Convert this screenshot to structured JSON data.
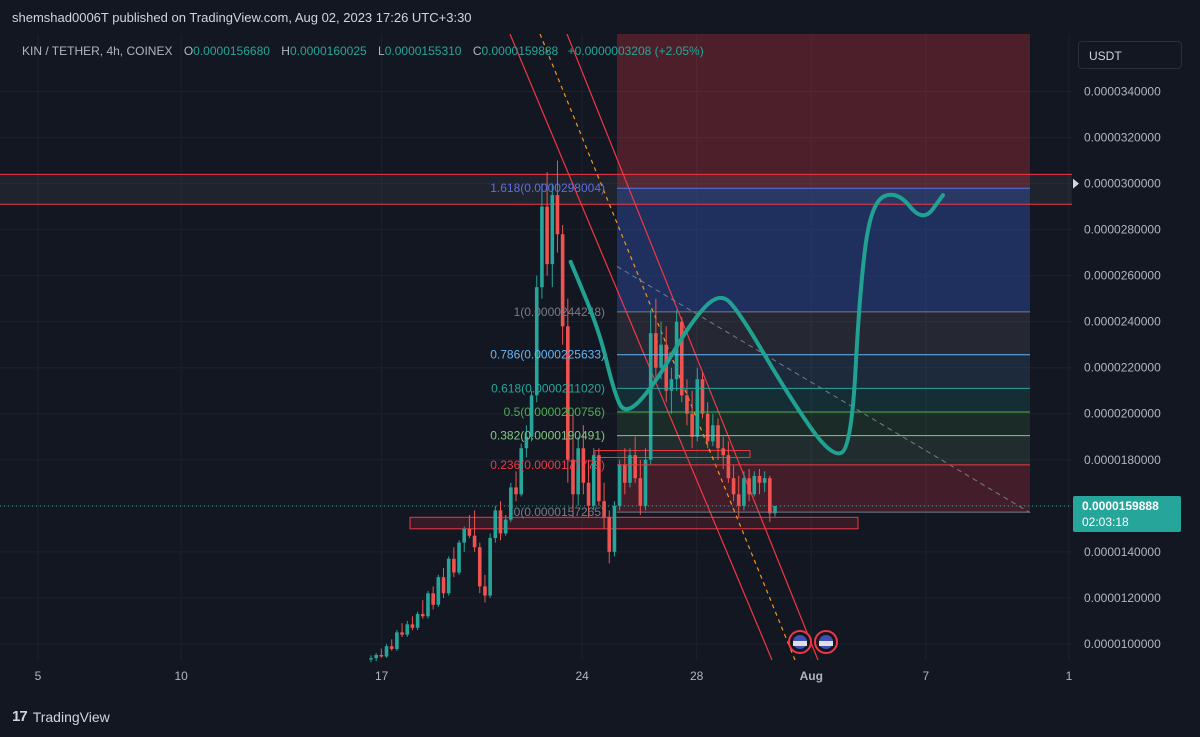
{
  "header": {
    "published": "shemshad0006T published on TradingView.com, Aug 02, 2023 17:26 UTC+3:30"
  },
  "legend": {
    "symbol": "KIN / TETHER, 4h, COINEX",
    "o_label": "O",
    "o_value": "0.0000156680",
    "h_label": "H",
    "h_value": "0.0000160025",
    "l_label": "L",
    "l_value": "0.0000155310",
    "c_label": "C",
    "c_value": "0.0000159888",
    "change": "+0.0000003208 (+2.05%)"
  },
  "currency_button": "USDT",
  "footer": {
    "brand": "TradingView"
  },
  "colors": {
    "bg": "#131722",
    "up": "#26a69a",
    "down": "#ef5350",
    "path": "#21a192",
    "grid": "#1e222d"
  },
  "chart_data": {
    "type": "candlestick",
    "interval": "4h",
    "ylim": [
      9.3e-06,
      3.65e-05
    ],
    "y_ticks": [
      {
        "value": 1e-05,
        "label": "0.0000100000"
      },
      {
        "value": 1.2e-05,
        "label": "0.0000120000"
      },
      {
        "value": 1.4e-05,
        "label": "0.0000140000"
      },
      {
        "value": 1.6e-05,
        "label": ""
      },
      {
        "value": 1.8e-05,
        "label": "0.0000180000"
      },
      {
        "value": 2e-05,
        "label": "0.0000200000"
      },
      {
        "value": 2.2e-05,
        "label": "0.0000220000"
      },
      {
        "value": 2.4e-05,
        "label": "0.0000240000"
      },
      {
        "value": 2.6e-05,
        "label": "0.0000260000"
      },
      {
        "value": 2.8e-05,
        "label": "0.0000280000"
      },
      {
        "value": 3e-05,
        "label": "0.0000300000"
      },
      {
        "value": 3.2e-05,
        "label": "0.0000320000"
      },
      {
        "value": 3.4e-05,
        "label": "0.0000340000"
      }
    ],
    "x_ticks": [
      {
        "day": 5,
        "label": "5"
      },
      {
        "day": 10,
        "label": "10"
      },
      {
        "day": 17,
        "label": "17"
      },
      {
        "day": 24,
        "label": "24"
      },
      {
        "day": 28,
        "label": "28"
      },
      {
        "day": 32,
        "label": "Aug"
      },
      {
        "day": 36,
        "label": "7"
      },
      {
        "day": 41,
        "label": "1"
      }
    ],
    "x_range_days": [
      4,
      41
    ],
    "last_price": {
      "value": 1.59888e-05,
      "label": "0.0000159888",
      "countdown": "02:03:18"
    },
    "fib_levels": [
      {
        "ratio": 1.618,
        "label": "1.618(0.0000298004)",
        "value": 2.98004e-05,
        "color": "#5b6ee1"
      },
      {
        "ratio": 1,
        "label": "1(0.0000244248)",
        "value": 2.44248e-05,
        "color": "#787b86"
      },
      {
        "ratio": 0.786,
        "label": "0.786(0.0000225633)",
        "value": 2.25633e-05,
        "color": "#64b5f6"
      },
      {
        "ratio": 0.618,
        "label": "0.618(0.0000211020)",
        "value": 2.1102e-05,
        "color": "#26a69a"
      },
      {
        "ratio": 0.5,
        "label": "0.5(0.0000200756)",
        "value": 2.00756e-05,
        "color": "#4caf50"
      },
      {
        "ratio": 0.382,
        "label": "0.382(0.0000190491)",
        "value": 1.90491e-05,
        "color": "#81c784"
      },
      {
        "ratio": 0.236,
        "label": "0.236(0.0000177779)",
        "value": 1.77779e-05,
        "color": "#f23645"
      },
      {
        "ratio": 0,
        "label": "0(0.0000157265)",
        "value": 1.57265e-05,
        "color": "#787b86"
      }
    ],
    "horizontal_levels": [
      3.04e-05,
      2.91e-05
    ],
    "candles": [
      [
        9.32e-06,
        9.5e-06,
        9.2e-06,
        9.38e-06
      ],
      [
        9.38e-06,
        9.6e-06,
        9.25e-06,
        9.52e-06
      ],
      [
        9.52e-06,
        9.8e-06,
        9.4e-06,
        9.45e-06
      ],
      [
        9.45e-06,
        1e-05,
        9.4e-06,
        9.9e-06
      ],
      [
        9.9e-06,
        1.02e-05,
        9.7e-06,
        9.78e-06
      ],
      [
        9.78e-06,
        1.06e-05,
        9.7e-06,
        1.05e-05
      ],
      [
        1.05e-05,
        1.09e-05,
        1.03e-05,
        1.04e-05
      ],
      [
        1.04e-05,
        1.1e-05,
        1.03e-05,
        1.085e-05
      ],
      [
        1.085e-05,
        1.12e-05,
        1.06e-05,
        1.07e-05
      ],
      [
        1.07e-05,
        1.14e-05,
        1.06e-05,
        1.13e-05
      ],
      [
        1.13e-05,
        1.19e-05,
        1.11e-05,
        1.12e-05
      ],
      [
        1.12e-05,
        1.23e-05,
        1.11e-05,
        1.22e-05
      ],
      [
        1.22e-05,
        1.25e-05,
        1.15e-05,
        1.17e-05
      ],
      [
        1.17e-05,
        1.3e-05,
        1.16e-05,
        1.29e-05
      ],
      [
        1.29e-05,
        1.33e-05,
        1.2e-05,
        1.22e-05
      ],
      [
        1.22e-05,
        1.38e-05,
        1.21e-05,
        1.37e-05
      ],
      [
        1.37e-05,
        1.42e-05,
        1.29e-05,
        1.31e-05
      ],
      [
        1.31e-05,
        1.45e-05,
        1.3e-05,
        1.44e-05
      ],
      [
        1.44e-05,
        1.51e-05,
        1.4e-05,
        1.5e-05
      ],
      [
        1.5e-05,
        1.56e-05,
        1.46e-05,
        1.47e-05
      ],
      [
        1.47e-05,
        1.58e-05,
        1.4e-05,
        1.42e-05
      ],
      [
        1.42e-05,
        1.44e-05,
        1.22e-05,
        1.25e-05
      ],
      [
        1.25e-05,
        1.3e-05,
        1.18e-05,
        1.21e-05
      ],
      [
        1.21e-05,
        1.48e-05,
        1.2e-05,
        1.46e-05
      ],
      [
        1.46e-05,
        1.6e-05,
        1.44e-05,
        1.58e-05
      ],
      [
        1.58e-05,
        1.62e-05,
        1.45e-05,
        1.48e-05
      ],
      [
        1.48e-05,
        1.56e-05,
        1.47e-05,
        1.54e-05
      ],
      [
        1.54e-05,
        1.7e-05,
        1.53e-05,
        1.68e-05
      ],
      [
        1.68e-05,
        1.75e-05,
        1.62e-05,
        1.65e-05
      ],
      [
        1.65e-05,
        1.87e-05,
        1.64e-05,
        1.85e-05
      ],
      [
        1.85e-05,
        1.95e-05,
        1.81e-05,
        1.9e-05
      ],
      [
        1.9e-05,
        2.1e-05,
        1.88e-05,
        2.08e-05
      ],
      [
        2.08e-05,
        2.6e-05,
        2.05e-05,
        2.55e-05
      ],
      [
        2.55e-05,
        3e-05,
        2.5e-05,
        2.9e-05
      ],
      [
        2.9e-05,
        3.05e-05,
        2.6e-05,
        2.65e-05
      ],
      [
        2.65e-05,
        3e-05,
        2.55e-05,
        2.95e-05
      ],
      [
        2.95e-05,
        3.1e-05,
        2.7e-05,
        2.78e-05
      ],
      [
        2.78e-05,
        2.82e-05,
        2.3e-05,
        2.38e-05
      ],
      [
        2.38e-05,
        2.5e-05,
        1.7e-05,
        1.8e-05
      ],
      [
        1.8e-05,
        2e-05,
        1.55e-05,
        1.65e-05
      ],
      [
        1.65e-05,
        1.9e-05,
        1.6e-05,
        1.85e-05
      ],
      [
        1.85e-05,
        1.95e-05,
        1.65e-05,
        1.7e-05
      ],
      [
        1.7e-05,
        1.8e-05,
        1.55e-05,
        1.6e-05
      ],
      [
        1.6e-05,
        1.85e-05,
        1.58e-05,
        1.82e-05
      ],
      [
        1.82e-05,
        1.85e-05,
        1.6e-05,
        1.62e-05
      ],
      [
        1.62e-05,
        1.7e-05,
        1.5e-05,
        1.55e-05
      ],
      [
        1.55e-05,
        1.58e-05,
        1.35e-05,
        1.4e-05
      ],
      [
        1.4e-05,
        1.62e-05,
        1.38e-05,
        1.6e-05
      ],
      [
        1.6e-05,
        1.8e-05,
        1.58e-05,
        1.78e-05
      ],
      [
        1.78e-05,
        1.85e-05,
        1.65e-05,
        1.7e-05
      ],
      [
        1.7e-05,
        1.85e-05,
        1.68e-05,
        1.82e-05
      ],
      [
        1.82e-05,
        1.9e-05,
        1.7e-05,
        1.72e-05
      ],
      [
        1.72e-05,
        1.8e-05,
        1.56e-05,
        1.6e-05
      ],
      [
        1.6e-05,
        1.85e-05,
        1.58e-05,
        1.8e-05
      ],
      [
        1.8e-05,
        2.45e-05,
        1.78e-05,
        2.35e-05
      ],
      [
        2.35e-05,
        2.5e-05,
        2.15e-05,
        2.2e-05
      ],
      [
        2.2e-05,
        2.4e-05,
        2.15e-05,
        2.3e-05
      ],
      [
        2.3e-05,
        2.38e-05,
        2.05e-05,
        2.1e-05
      ],
      [
        2.1e-05,
        2.2e-05,
        2e-05,
        2.15e-05
      ],
      [
        2.15e-05,
        2.45e-05,
        2.1e-05,
        2.4e-05
      ],
      [
        2.4e-05,
        2.42e-05,
        2.05e-05,
        2.08e-05
      ],
      [
        2.08e-05,
        2.15e-05,
        1.95e-05,
        2e-05
      ],
      [
        2e-05,
        2.1e-05,
        1.85e-05,
        1.9e-05
      ],
      [
        1.9e-05,
        2.2e-05,
        1.88e-05,
        2.15e-05
      ],
      [
        2.15e-05,
        2.18e-05,
        1.98e-05,
        2e-05
      ],
      [
        2e-05,
        2.05e-05,
        1.85e-05,
        1.88e-05
      ],
      [
        1.88e-05,
        2e-05,
        1.86e-05,
        1.95e-05
      ],
      [
        1.95e-05,
        1.98e-05,
        1.8e-05,
        1.85e-05
      ],
      [
        1.85e-05,
        1.9e-05,
        1.76e-05,
        1.82e-05
      ],
      [
        1.82e-05,
        1.88e-05,
        1.7e-05,
        1.72e-05
      ],
      [
        1.72e-05,
        1.78e-05,
        1.62e-05,
        1.65e-05
      ],
      [
        1.65e-05,
        1.73e-05,
        1.55e-05,
        1.6e-05
      ],
      [
        1.6e-05,
        1.75e-05,
        1.58e-05,
        1.72e-05
      ],
      [
        1.72e-05,
        1.76e-05,
        1.62e-05,
        1.65e-05
      ],
      [
        1.65e-05,
        1.75e-05,
        1.64e-05,
        1.73e-05
      ],
      [
        1.73e-05,
        1.76e-05,
        1.65e-05,
        1.7e-05
      ],
      [
        1.7e-05,
        1.75e-05,
        1.66e-05,
        1.72e-05
      ],
      [
        1.72e-05,
        1.73e-05,
        1.53e-05,
        1.567e-05
      ],
      [
        1.567e-05,
        1.6e-05,
        1.553e-05,
        1.599e-05
      ]
    ],
    "projection_path": [
      [
        23.6,
        2.66e-05
      ],
      [
        24.6,
        2.36e-05
      ],
      [
        25.1,
        2.1e-05
      ],
      [
        25.5,
        1.99e-05
      ],
      [
        26.5,
        2.12e-05
      ],
      [
        27.8,
        2.4e-05
      ],
      [
        28.8,
        2.53e-05
      ],
      [
        29.5,
        2.44e-05
      ],
      [
        31.2,
        2.08e-05
      ],
      [
        32.7,
        1.81e-05
      ],
      [
        33.4,
        1.85e-05
      ],
      [
        33.7,
        2.55e-05
      ],
      [
        34.1,
        2.92e-05
      ],
      [
        35.0,
        2.97e-05
      ],
      [
        35.9,
        2.83e-05
      ],
      [
        36.6,
        2.95e-05
      ]
    ]
  }
}
